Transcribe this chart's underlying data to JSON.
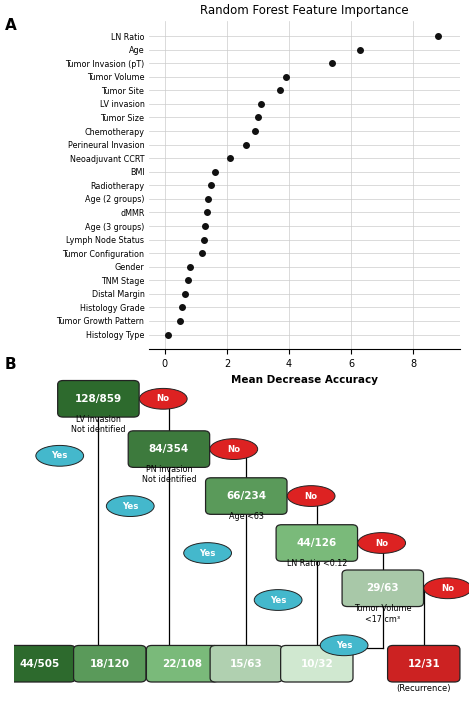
{
  "title": "Random Forest Feature Importance",
  "xlabel": "Mean Decrease Accuracy",
  "panel_a_label": "A",
  "panel_b_label": "B",
  "features": [
    "Histology Type",
    "Tumor Growth Pattern",
    "Histology Grade",
    "Distal Margin",
    "TNM Stage",
    "Gender",
    "Tumor Configuration",
    "Lymph Node Status",
    "Age (3 groups)",
    "dMMR",
    "Age (2 groups)",
    "Radiotherapy",
    "BMI",
    "Neoadjuvant CCRT",
    "Perineural Invasion",
    "Chemotherapy",
    "Tumor Size",
    "LV invasion",
    "Tumor Site",
    "Tumor Volume",
    "Tumor Invasion (pT)",
    "Age",
    "LN Ratio"
  ],
  "importance": [
    0.1,
    0.5,
    0.55,
    0.65,
    0.75,
    0.8,
    1.2,
    1.25,
    1.3,
    1.35,
    1.4,
    1.5,
    1.6,
    2.1,
    2.6,
    2.9,
    3.0,
    3.1,
    3.7,
    3.9,
    5.4,
    6.3,
    8.8
  ],
  "xlim": [
    -0.5,
    9.5
  ],
  "xticks": [
    0,
    2,
    4,
    6,
    8
  ],
  "dot_color": "#111111",
  "grid_color": "#cccccc",
  "background_color": "#ffffff",
  "recurrence_label": "(Recurrence)",
  "node_colors": {
    "root": "#2d6a2d",
    "n1": "#3d7a3d",
    "n2": "#5a9a5a",
    "n3": "#7aba7a",
    "n4": "#a8c8a8",
    "l0": "#2d6a2d",
    "l1": "#5a9a5a",
    "l2": "#7aba7a",
    "l3": "#b0d0b0",
    "l4": "#d0e8d0",
    "l5": "#cc2222"
  },
  "cyan_color": "#44b8cc",
  "red_color": "#dd2222"
}
